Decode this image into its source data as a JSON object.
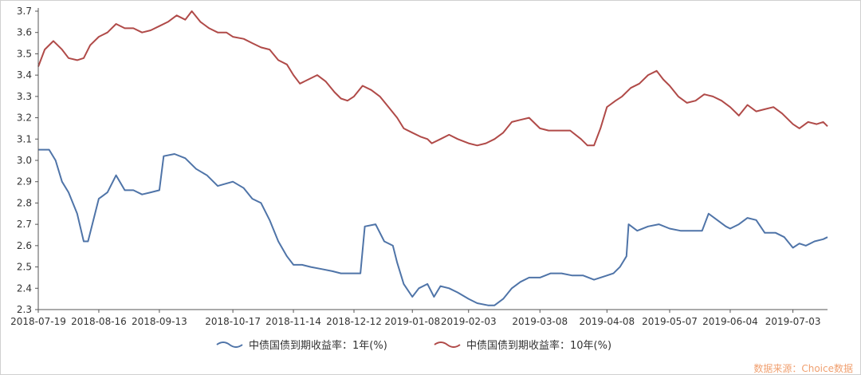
{
  "chart_data": {
    "type": "line",
    "title": "",
    "xlabel": "",
    "ylabel": "",
    "ylim": [
      2.3,
      3.7
    ],
    "y_ticks": [
      "2.3",
      "2.4",
      "2.5",
      "2.6",
      "2.7",
      "2.8",
      "2.9",
      "3.0",
      "3.1",
      "3.2",
      "3.3",
      "3.4",
      "3.5",
      "3.6",
      "3.7"
    ],
    "x_ticks": [
      "2018-07-19",
      "2018-08-16",
      "2018-09-13",
      "2018-10-17",
      "2018-11-14",
      "2018-12-12",
      "2019-01-08",
      "2019-02-03",
      "2019-03-08",
      "2019-04-08",
      "2019-05-07",
      "2019-06-04",
      "2019-07-03"
    ],
    "x_range": [
      "2018-07-19",
      "2019-07-19"
    ],
    "grid": false,
    "legend_position": "bottom-center",
    "series": [
      {
        "name": "中债国债到期收益率：1年(%)",
        "color": "#4f74a8",
        "points": [
          [
            "2018-07-19",
            3.05
          ],
          [
            "2018-07-24",
            3.05
          ],
          [
            "2018-07-27",
            3.0
          ],
          [
            "2018-07-30",
            2.9
          ],
          [
            "2018-08-02",
            2.85
          ],
          [
            "2018-08-06",
            2.75
          ],
          [
            "2018-08-09",
            2.62
          ],
          [
            "2018-08-11",
            2.62
          ],
          [
            "2018-08-13",
            2.7
          ],
          [
            "2018-08-16",
            2.82
          ],
          [
            "2018-08-20",
            2.85
          ],
          [
            "2018-08-24",
            2.93
          ],
          [
            "2018-08-28",
            2.86
          ],
          [
            "2018-09-01",
            2.86
          ],
          [
            "2018-09-05",
            2.84
          ],
          [
            "2018-09-09",
            2.85
          ],
          [
            "2018-09-13",
            2.86
          ],
          [
            "2018-09-15",
            3.02
          ],
          [
            "2018-09-20",
            3.03
          ],
          [
            "2018-09-25",
            3.01
          ],
          [
            "2018-09-30",
            2.96
          ],
          [
            "2018-10-05",
            2.93
          ],
          [
            "2018-10-10",
            2.88
          ],
          [
            "2018-10-17",
            2.9
          ],
          [
            "2018-10-22",
            2.87
          ],
          [
            "2018-10-26",
            2.82
          ],
          [
            "2018-10-30",
            2.8
          ],
          [
            "2018-11-03",
            2.72
          ],
          [
            "2018-11-07",
            2.62
          ],
          [
            "2018-11-11",
            2.55
          ],
          [
            "2018-11-14",
            2.51
          ],
          [
            "2018-11-18",
            2.51
          ],
          [
            "2018-11-22",
            2.5
          ],
          [
            "2018-11-27",
            2.49
          ],
          [
            "2018-12-02",
            2.48
          ],
          [
            "2018-12-06",
            2.47
          ],
          [
            "2018-12-12",
            2.47
          ],
          [
            "2018-12-15",
            2.47
          ],
          [
            "2018-12-17",
            2.69
          ],
          [
            "2018-12-22",
            2.7
          ],
          [
            "2018-12-26",
            2.62
          ],
          [
            "2018-12-30",
            2.6
          ],
          [
            "2019-01-01",
            2.52
          ],
          [
            "2019-01-04",
            2.42
          ],
          [
            "2019-01-08",
            2.36
          ],
          [
            "2019-01-11",
            2.4
          ],
          [
            "2019-01-15",
            2.42
          ],
          [
            "2019-01-18",
            2.36
          ],
          [
            "2019-01-21",
            2.41
          ],
          [
            "2019-01-25",
            2.4
          ],
          [
            "2019-01-29",
            2.38
          ],
          [
            "2019-02-03",
            2.35
          ],
          [
            "2019-02-07",
            2.33
          ],
          [
            "2019-02-12",
            2.32
          ],
          [
            "2019-02-15",
            2.32
          ],
          [
            "2019-02-19",
            2.35
          ],
          [
            "2019-02-23",
            2.4
          ],
          [
            "2019-02-27",
            2.43
          ],
          [
            "2019-03-03",
            2.45
          ],
          [
            "2019-03-08",
            2.45
          ],
          [
            "2019-03-13",
            2.47
          ],
          [
            "2019-03-18",
            2.47
          ],
          [
            "2019-03-23",
            2.46
          ],
          [
            "2019-03-28",
            2.46
          ],
          [
            "2019-04-02",
            2.44
          ],
          [
            "2019-04-05",
            2.45
          ],
          [
            "2019-04-08",
            2.46
          ],
          [
            "2019-04-11",
            2.47
          ],
          [
            "2019-04-14",
            2.5
          ],
          [
            "2019-04-17",
            2.55
          ],
          [
            "2019-04-18",
            2.7
          ],
          [
            "2019-04-22",
            2.67
          ],
          [
            "2019-04-27",
            2.69
          ],
          [
            "2019-05-02",
            2.7
          ],
          [
            "2019-05-07",
            2.68
          ],
          [
            "2019-05-12",
            2.67
          ],
          [
            "2019-05-17",
            2.67
          ],
          [
            "2019-05-22",
            2.67
          ],
          [
            "2019-05-25",
            2.75
          ],
          [
            "2019-05-29",
            2.72
          ],
          [
            "2019-06-02",
            2.69
          ],
          [
            "2019-06-04",
            2.68
          ],
          [
            "2019-06-08",
            2.7
          ],
          [
            "2019-06-12",
            2.73
          ],
          [
            "2019-06-16",
            2.72
          ],
          [
            "2019-06-20",
            2.66
          ],
          [
            "2019-06-25",
            2.66
          ],
          [
            "2019-06-29",
            2.64
          ],
          [
            "2019-07-03",
            2.59
          ],
          [
            "2019-07-06",
            2.61
          ],
          [
            "2019-07-09",
            2.6
          ],
          [
            "2019-07-13",
            2.62
          ],
          [
            "2019-07-17",
            2.63
          ],
          [
            "2019-07-19",
            2.64
          ]
        ]
      },
      {
        "name": "中债国债到期收益率：10年(%)",
        "color": "#b04a48",
        "points": [
          [
            "2018-07-19",
            3.44
          ],
          [
            "2018-07-22",
            3.52
          ],
          [
            "2018-07-26",
            3.56
          ],
          [
            "2018-07-30",
            3.52
          ],
          [
            "2018-08-02",
            3.48
          ],
          [
            "2018-08-06",
            3.47
          ],
          [
            "2018-08-09",
            3.48
          ],
          [
            "2018-08-12",
            3.54
          ],
          [
            "2018-08-16",
            3.58
          ],
          [
            "2018-08-20",
            3.6
          ],
          [
            "2018-08-24",
            3.64
          ],
          [
            "2018-08-28",
            3.62
          ],
          [
            "2018-09-01",
            3.62
          ],
          [
            "2018-09-05",
            3.6
          ],
          [
            "2018-09-09",
            3.61
          ],
          [
            "2018-09-13",
            3.63
          ],
          [
            "2018-09-17",
            3.65
          ],
          [
            "2018-09-21",
            3.68
          ],
          [
            "2018-09-25",
            3.66
          ],
          [
            "2018-09-28",
            3.7
          ],
          [
            "2018-10-02",
            3.65
          ],
          [
            "2018-10-06",
            3.62
          ],
          [
            "2018-10-10",
            3.6
          ],
          [
            "2018-10-14",
            3.6
          ],
          [
            "2018-10-17",
            3.58
          ],
          [
            "2018-10-22",
            3.57
          ],
          [
            "2018-10-26",
            3.55
          ],
          [
            "2018-10-30",
            3.53
          ],
          [
            "2018-11-03",
            3.52
          ],
          [
            "2018-11-07",
            3.47
          ],
          [
            "2018-11-11",
            3.45
          ],
          [
            "2018-11-14",
            3.4
          ],
          [
            "2018-11-17",
            3.36
          ],
          [
            "2018-11-21",
            3.38
          ],
          [
            "2018-11-25",
            3.4
          ],
          [
            "2018-11-29",
            3.37
          ],
          [
            "2018-12-03",
            3.32
          ],
          [
            "2018-12-06",
            3.29
          ],
          [
            "2018-12-09",
            3.28
          ],
          [
            "2018-12-12",
            3.3
          ],
          [
            "2018-12-16",
            3.35
          ],
          [
            "2018-12-20",
            3.33
          ],
          [
            "2018-12-24",
            3.3
          ],
          [
            "2018-12-28",
            3.25
          ],
          [
            "2019-01-01",
            3.2
          ],
          [
            "2019-01-04",
            3.15
          ],
          [
            "2019-01-08",
            3.13
          ],
          [
            "2019-01-12",
            3.11
          ],
          [
            "2019-01-15",
            3.1
          ],
          [
            "2019-01-17",
            3.08
          ],
          [
            "2019-01-21",
            3.1
          ],
          [
            "2019-01-25",
            3.12
          ],
          [
            "2019-01-29",
            3.1
          ],
          [
            "2019-02-03",
            3.08
          ],
          [
            "2019-02-07",
            3.07
          ],
          [
            "2019-02-11",
            3.08
          ],
          [
            "2019-02-15",
            3.1
          ],
          [
            "2019-02-19",
            3.13
          ],
          [
            "2019-02-23",
            3.18
          ],
          [
            "2019-02-27",
            3.19
          ],
          [
            "2019-03-03",
            3.2
          ],
          [
            "2019-03-08",
            3.15
          ],
          [
            "2019-03-12",
            3.14
          ],
          [
            "2019-03-17",
            3.14
          ],
          [
            "2019-03-22",
            3.14
          ],
          [
            "2019-03-27",
            3.1
          ],
          [
            "2019-03-30",
            3.07
          ],
          [
            "2019-04-02",
            3.07
          ],
          [
            "2019-04-05",
            3.15
          ],
          [
            "2019-04-08",
            3.25
          ],
          [
            "2019-04-12",
            3.28
          ],
          [
            "2019-04-15",
            3.3
          ],
          [
            "2019-04-19",
            3.34
          ],
          [
            "2019-04-23",
            3.36
          ],
          [
            "2019-04-27",
            3.4
          ],
          [
            "2019-05-01",
            3.42
          ],
          [
            "2019-05-04",
            3.38
          ],
          [
            "2019-05-07",
            3.35
          ],
          [
            "2019-05-11",
            3.3
          ],
          [
            "2019-05-15",
            3.27
          ],
          [
            "2019-05-19",
            3.28
          ],
          [
            "2019-05-23",
            3.31
          ],
          [
            "2019-05-27",
            3.3
          ],
          [
            "2019-05-31",
            3.28
          ],
          [
            "2019-06-04",
            3.25
          ],
          [
            "2019-06-08",
            3.21
          ],
          [
            "2019-06-12",
            3.26
          ],
          [
            "2019-06-16",
            3.23
          ],
          [
            "2019-06-20",
            3.24
          ],
          [
            "2019-06-24",
            3.25
          ],
          [
            "2019-06-28",
            3.22
          ],
          [
            "2019-07-03",
            3.17
          ],
          [
            "2019-07-06",
            3.15
          ],
          [
            "2019-07-10",
            3.18
          ],
          [
            "2019-07-14",
            3.17
          ],
          [
            "2019-07-17",
            3.18
          ],
          [
            "2019-07-19",
            3.16
          ]
        ]
      }
    ],
    "source": "数据来源：Choice数据"
  }
}
